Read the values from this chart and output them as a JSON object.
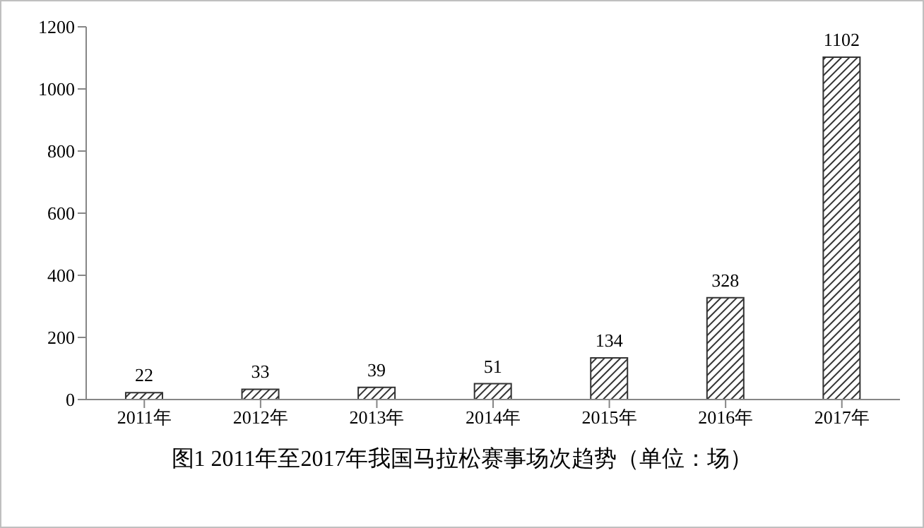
{
  "chart_data": {
    "type": "bar",
    "title": "图1 2011年至2017年我国马拉松赛事场次趋势（单位：场）",
    "categories": [
      "2011年",
      "2012年",
      "2013年",
      "2014年",
      "2015年",
      "2016年",
      "2017年"
    ],
    "values": [
      22,
      33,
      39,
      51,
      134,
      328,
      1102
    ],
    "color": "#333333",
    "ylim": [
      0,
      1200
    ],
    "yticks": [
      0,
      200,
      400,
      600,
      800,
      1000,
      1200
    ],
    "data_labels": true,
    "grid": false,
    "legend": false
  }
}
